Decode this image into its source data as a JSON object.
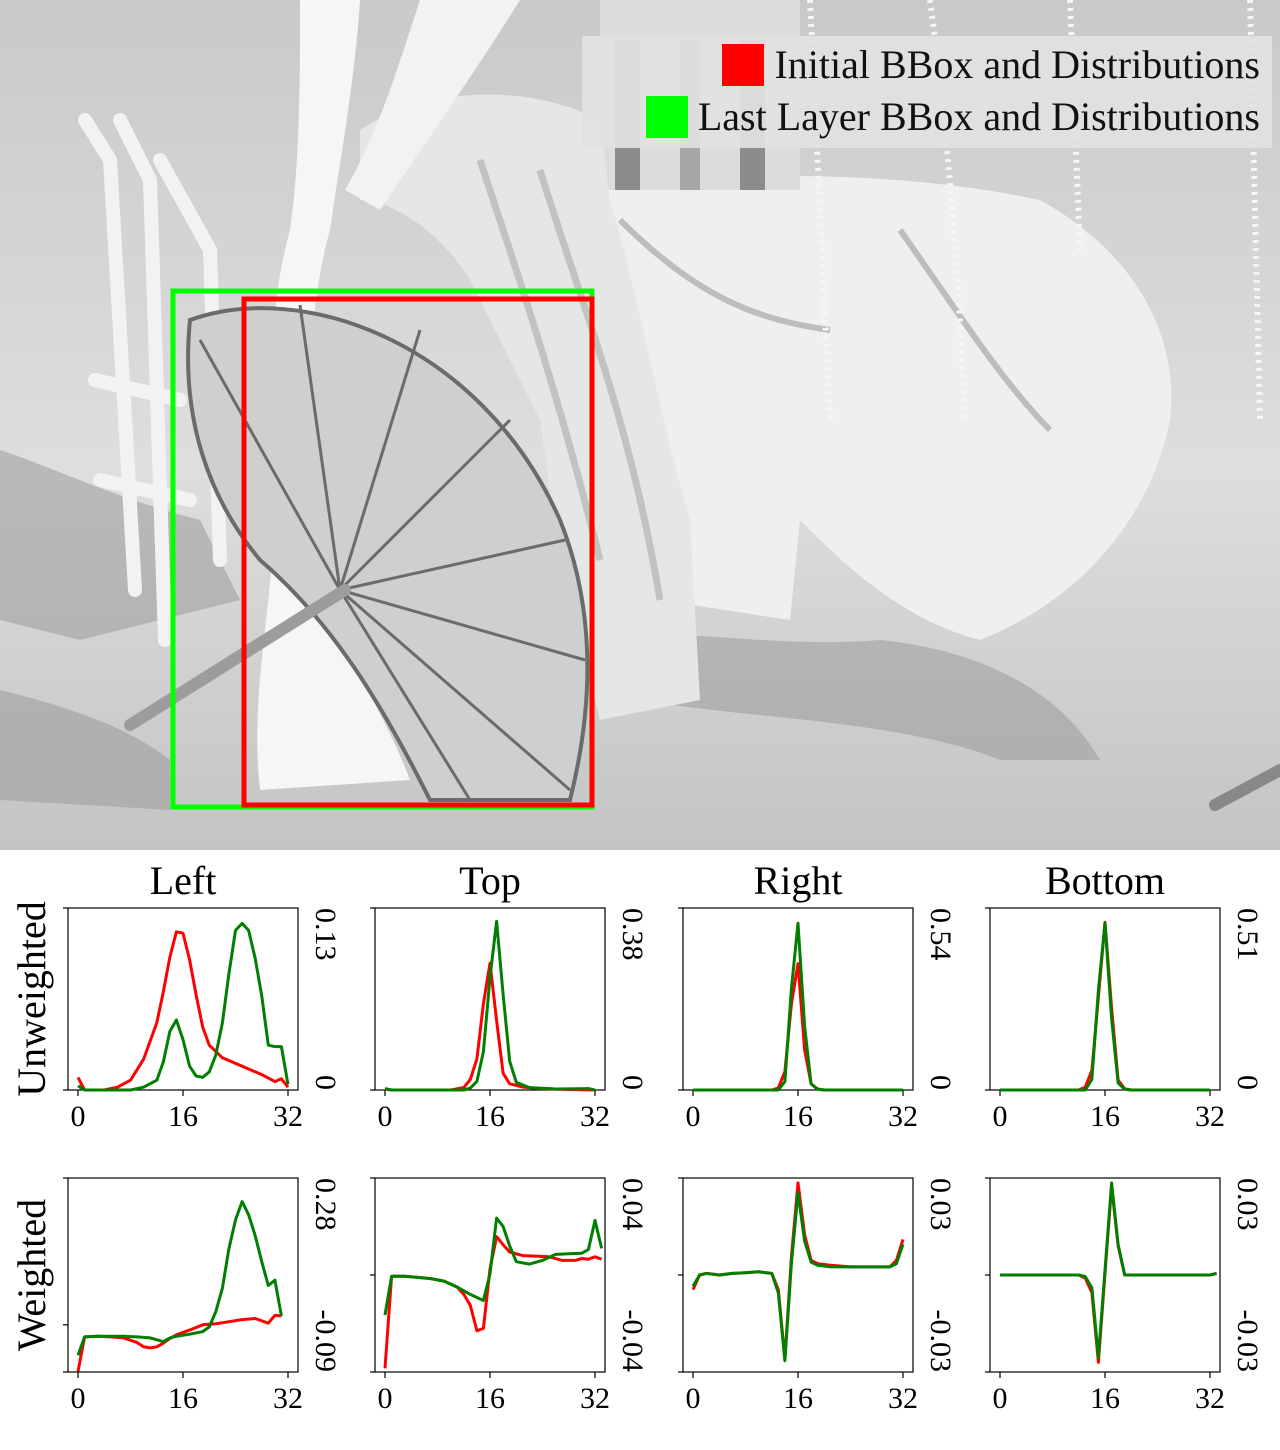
{
  "legend": {
    "initial": {
      "label": "Initial BBox and Distributions",
      "color": "#ff0000"
    },
    "last": {
      "label": "Last Layer BBox and Distributions",
      "color": "#00ff00"
    }
  },
  "photo_boxes": {
    "initial": {
      "color": "#ff0000"
    },
    "last": {
      "color": "#00ff00"
    }
  },
  "chart_data": {
    "type": "line",
    "columns": [
      "Left",
      "Top",
      "Right",
      "Bottom"
    ],
    "rows": [
      "Unweighted",
      "Weighted"
    ],
    "series_colors": {
      "initial": "#ff0000",
      "last": "#007f00"
    },
    "xticks": [
      "0",
      "16",
      "32"
    ],
    "xlim": [
      0,
      32
    ],
    "panels": [
      {
        "row": "Unweighted",
        "col": "Left",
        "ylim": [
          0,
          0.13
        ],
        "ymax_label": "0.13",
        "ymin_label": "0",
        "initial": [
          [
            0,
            0.009
          ],
          [
            1,
            0
          ],
          [
            4,
            0
          ],
          [
            6,
            0.002
          ],
          [
            8,
            0.007
          ],
          [
            10,
            0.022
          ],
          [
            12,
            0.048
          ],
          [
            13,
            0.07
          ],
          [
            14,
            0.095
          ],
          [
            15,
            0.113
          ],
          [
            16,
            0.112
          ],
          [
            17,
            0.093
          ],
          [
            18,
            0.068
          ],
          [
            19,
            0.045
          ],
          [
            20,
            0.032
          ],
          [
            22,
            0.023
          ],
          [
            24,
            0.019
          ],
          [
            26,
            0.015
          ],
          [
            28,
            0.011
          ],
          [
            30,
            0.006
          ],
          [
            31,
            0.008
          ],
          [
            32,
            0.002
          ]
        ],
        "last": [
          [
            0,
            0.003
          ],
          [
            1,
            0
          ],
          [
            8,
            0
          ],
          [
            10,
            0.002
          ],
          [
            12,
            0.007
          ],
          [
            13,
            0.02
          ],
          [
            14,
            0.042
          ],
          [
            15,
            0.05
          ],
          [
            16,
            0.036
          ],
          [
            17,
            0.017
          ],
          [
            18,
            0.01
          ],
          [
            19,
            0.009
          ],
          [
            20,
            0.013
          ],
          [
            21,
            0.025
          ],
          [
            22,
            0.048
          ],
          [
            23,
            0.083
          ],
          [
            24,
            0.114
          ],
          [
            25,
            0.119
          ],
          [
            26,
            0.114
          ],
          [
            27,
            0.094
          ],
          [
            28,
            0.067
          ],
          [
            29,
            0.032
          ],
          [
            30,
            0.031
          ],
          [
            31,
            0.031
          ],
          [
            32,
            0.004
          ]
        ]
      },
      {
        "row": "Unweighted",
        "col": "Top",
        "ylim": [
          0,
          0.38
        ],
        "ymax_label": "0.38",
        "ymin_label": "0",
        "initial": [
          [
            0,
            0.002
          ],
          [
            1,
            0
          ],
          [
            10,
            0
          ],
          [
            12,
            0.005
          ],
          [
            13,
            0.022
          ],
          [
            14,
            0.065
          ],
          [
            15,
            0.18
          ],
          [
            16,
            0.265
          ],
          [
            17,
            0.145
          ],
          [
            18,
            0.035
          ],
          [
            19,
            0.013
          ],
          [
            21,
            0.006
          ],
          [
            24,
            0.003
          ],
          [
            28,
            0.001
          ],
          [
            32,
            0
          ]
        ],
        "last": [
          [
            0,
            0.003
          ],
          [
            1,
            0
          ],
          [
            12,
            0
          ],
          [
            13,
            0.004
          ],
          [
            14,
            0.018
          ],
          [
            15,
            0.08
          ],
          [
            16,
            0.235
          ],
          [
            17,
            0.352
          ],
          [
            18,
            0.2
          ],
          [
            19,
            0.06
          ],
          [
            20,
            0.016
          ],
          [
            22,
            0.005
          ],
          [
            26,
            0.002
          ],
          [
            31,
            0.003
          ],
          [
            32,
            0
          ]
        ]
      },
      {
        "row": "Unweighted",
        "col": "Right",
        "ylim": [
          0,
          0.54
        ],
        "ymax_label": "0.54",
        "ymin_label": "0",
        "initial": [
          [
            0,
            0
          ],
          [
            12,
            0
          ],
          [
            13,
            0.006
          ],
          [
            14,
            0.055
          ],
          [
            15,
            0.255
          ],
          [
            16,
            0.375
          ],
          [
            17,
            0.12
          ],
          [
            18,
            0.018
          ],
          [
            19,
            0.003
          ],
          [
            20,
            0
          ],
          [
            32,
            0
          ]
        ],
        "last": [
          [
            0,
            0
          ],
          [
            13,
            0
          ],
          [
            14,
            0.025
          ],
          [
            15,
            0.3
          ],
          [
            16,
            0.495
          ],
          [
            17,
            0.19
          ],
          [
            18,
            0.018
          ],
          [
            19,
            0.002
          ],
          [
            20,
            0
          ],
          [
            32,
            0
          ]
        ]
      },
      {
        "row": "Unweighted",
        "col": "Bottom",
        "ylim": [
          0,
          0.51
        ],
        "ymax_label": "0.51",
        "ymin_label": "0",
        "initial": [
          [
            0,
            0
          ],
          [
            12,
            0
          ],
          [
            13,
            0.008
          ],
          [
            14,
            0.055
          ],
          [
            15,
            0.26
          ],
          [
            16,
            0.47
          ],
          [
            17,
            0.23
          ],
          [
            18,
            0.028
          ],
          [
            19,
            0.003
          ],
          [
            20,
            0
          ],
          [
            32,
            0
          ]
        ],
        "last": [
          [
            0,
            0
          ],
          [
            13,
            0
          ],
          [
            14,
            0.03
          ],
          [
            15,
            0.28
          ],
          [
            16,
            0.468
          ],
          [
            17,
            0.2
          ],
          [
            18,
            0.02
          ],
          [
            19,
            0.002
          ],
          [
            20,
            0
          ],
          [
            32,
            0
          ]
        ]
      },
      {
        "row": "Weighted",
        "col": "Left",
        "ylim": [
          -0.09,
          0.28
        ],
        "ymax_label": "0.28",
        "ymin_label": "-0.09",
        "initial": [
          [
            0,
            -0.089
          ],
          [
            1,
            -0.023
          ],
          [
            3,
            -0.022
          ],
          [
            5,
            -0.023
          ],
          [
            7,
            -0.025
          ],
          [
            9,
            -0.034
          ],
          [
            10,
            -0.042
          ],
          [
            11,
            -0.044
          ],
          [
            12,
            -0.042
          ],
          [
            13,
            -0.035
          ],
          [
            14,
            -0.026
          ],
          [
            15,
            -0.019
          ],
          [
            17,
            -0.01
          ],
          [
            19,
            0
          ],
          [
            21,
            0.002
          ],
          [
            23,
            0.006
          ],
          [
            25,
            0.01
          ],
          [
            27,
            0.012
          ],
          [
            29,
            0.003
          ],
          [
            30,
            0.018
          ],
          [
            31,
            0.017
          ]
        ],
        "last": [
          [
            0,
            -0.058
          ],
          [
            1,
            -0.023
          ],
          [
            3,
            -0.022
          ],
          [
            5,
            -0.022
          ],
          [
            7,
            -0.022
          ],
          [
            9,
            -0.023
          ],
          [
            11,
            -0.025
          ],
          [
            13,
            -0.032
          ],
          [
            14,
            -0.025
          ],
          [
            15,
            -0.022
          ],
          [
            17,
            -0.018
          ],
          [
            19,
            -0.013
          ],
          [
            20,
            -0.004
          ],
          [
            21,
            0.025
          ],
          [
            22,
            0.07
          ],
          [
            23,
            0.145
          ],
          [
            24,
            0.2
          ],
          [
            25,
            0.235
          ],
          [
            26,
            0.21
          ],
          [
            27,
            0.17
          ],
          [
            28,
            0.12
          ],
          [
            29,
            0.075
          ],
          [
            30,
            0.085
          ],
          [
            31,
            0.017
          ]
        ]
      },
      {
        "row": "Weighted",
        "col": "Top",
        "ylim": [
          -0.04,
          0.04
        ],
        "ymax_label": "0.04",
        "ymin_label": "-0.04",
        "initial": [
          [
            0,
            -0.0385
          ],
          [
            1,
            -0.0005
          ],
          [
            3,
            -0.0005
          ],
          [
            5,
            -0.001
          ],
          [
            7,
            -0.0015
          ],
          [
            9,
            -0.0025
          ],
          [
            11,
            -0.005
          ],
          [
            12,
            -0.008
          ],
          [
            13,
            -0.0125
          ],
          [
            14,
            -0.023
          ],
          [
            15,
            -0.022
          ],
          [
            16,
            0.0025
          ],
          [
            17,
            0.0158
          ],
          [
            18,
            0.0125
          ],
          [
            19,
            0.0095
          ],
          [
            21,
            0.008
          ],
          [
            23,
            0.0078
          ],
          [
            25,
            0.0075
          ],
          [
            27,
            0.006
          ],
          [
            29,
            0.006
          ],
          [
            30,
            0.0068
          ],
          [
            31,
            0.0065
          ],
          [
            32,
            0.0075
          ],
          [
            33,
            0.0065
          ]
        ],
        "last": [
          [
            0,
            -0.0165
          ],
          [
            1,
            -0.0005
          ],
          [
            3,
            -0.0005
          ],
          [
            5,
            -0.001
          ],
          [
            7,
            -0.0015
          ],
          [
            9,
            -0.0025
          ],
          [
            11,
            -0.005
          ],
          [
            13,
            -0.008
          ],
          [
            15,
            -0.0105
          ],
          [
            16,
            0.0005
          ],
          [
            17,
            0.0235
          ],
          [
            18,
            0.02
          ],
          [
            19,
            0.012
          ],
          [
            20,
            0.0055
          ],
          [
            22,
            0.0045
          ],
          [
            24,
            0.006
          ],
          [
            26,
            0.0085
          ],
          [
            28,
            0.0088
          ],
          [
            30,
            0.009
          ],
          [
            31,
            0.0105
          ],
          [
            32,
            0.0225
          ],
          [
            33,
            0.011
          ]
        ]
      },
      {
        "row": "Weighted",
        "col": "Right",
        "ylim": [
          -0.03,
          0.03
        ],
        "ymax_label": "0.03",
        "ymin_label": "-0.03",
        "initial": [
          [
            0,
            -0.0045
          ],
          [
            1,
            0
          ],
          [
            2,
            0.0005
          ],
          [
            4,
            0
          ],
          [
            6,
            0.0005
          ],
          [
            8,
            0.0007
          ],
          [
            10,
            0.001
          ],
          [
            12,
            0.0005
          ],
          [
            13,
            -0.0045
          ],
          [
            14,
            -0.026
          ],
          [
            15,
            0.0055
          ],
          [
            16,
            0.0285
          ],
          [
            17,
            0.0125
          ],
          [
            18,
            0.0045
          ],
          [
            19,
            0.0035
          ],
          [
            21,
            0.003
          ],
          [
            24,
            0.0025
          ],
          [
            27,
            0.0025
          ],
          [
            30,
            0.0025
          ],
          [
            31,
            0.0045
          ],
          [
            32,
            0.011
          ]
        ],
        "last": [
          [
            0,
            -0.0035
          ],
          [
            1,
            0
          ],
          [
            2,
            0.0005
          ],
          [
            4,
            0
          ],
          [
            6,
            0.0005
          ],
          [
            8,
            0.0007
          ],
          [
            10,
            0.001
          ],
          [
            12,
            0.0005
          ],
          [
            13,
            -0.0055
          ],
          [
            14,
            -0.0265
          ],
          [
            15,
            0.0035
          ],
          [
            16,
            0.0255
          ],
          [
            17,
            0.0105
          ],
          [
            18,
            0.004
          ],
          [
            19,
            0.003
          ],
          [
            21,
            0.0025
          ],
          [
            24,
            0.0025
          ],
          [
            27,
            0.0025
          ],
          [
            30,
            0.0025
          ],
          [
            31,
            0.0035
          ],
          [
            32,
            0.0095
          ]
        ]
      },
      {
        "row": "Weighted",
        "col": "Bottom",
        "ylim": [
          -0.03,
          0.03
        ],
        "ymax_label": "0.03",
        "ymin_label": "-0.03",
        "initial": [
          [
            0,
            0
          ],
          [
            12,
            0
          ],
          [
            13,
            -0.001
          ],
          [
            14,
            -0.0055
          ],
          [
            15,
            -0.027
          ],
          [
            16,
            0.0005
          ],
          [
            17,
            0.0275
          ],
          [
            18,
            0.009
          ],
          [
            19,
            0
          ],
          [
            32,
            0
          ],
          [
            33,
            0.0005
          ]
        ],
        "last": [
          [
            0,
            0
          ],
          [
            12,
            0
          ],
          [
            13,
            -0.0005
          ],
          [
            14,
            -0.004
          ],
          [
            15,
            -0.0255
          ],
          [
            16,
            0.0015
          ],
          [
            17,
            0.0285
          ],
          [
            18,
            0.0095
          ],
          [
            19,
            0
          ],
          [
            32,
            0
          ],
          [
            33,
            0.0005
          ]
        ]
      }
    ]
  }
}
